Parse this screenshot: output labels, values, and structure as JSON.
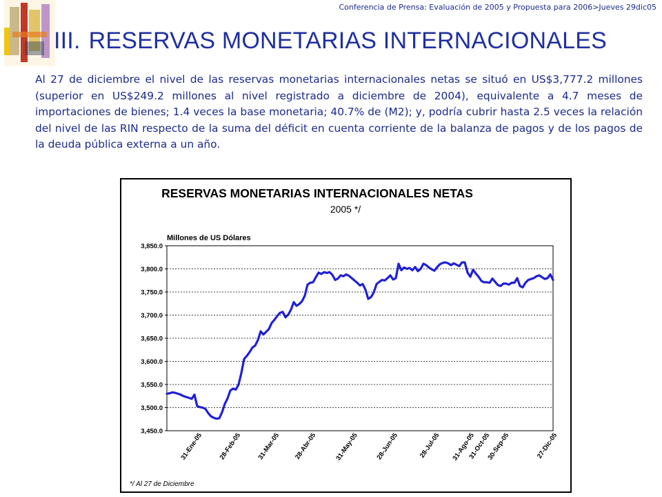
{
  "header": {
    "conference": "Conferencia de Prensa: Evaluación de 2005 y Propuesta para 2006>Jueves 29dic05"
  },
  "slide": {
    "number": "III.",
    "title": "RESERVAS MONETARIAS INTERNACIONALES",
    "body": "Al 27 de diciembre  el nivel de las reservas monetarias internacionales netas se situó en US$3,777.2 millones (superior en US$249.2 millones al nivel registrado a diciembre de 2004), equivalente a 4.7 meses de importaciones de bienes; 1.4 veces la base monetaria; 40.7% de (M2); y, podría cubrir hasta 2.5 veces la relación del nivel de las RIN respecto de la suma del déficit en cuenta corriente de la balanza de pagos y de los pagos de la deuda pública externa a un año."
  },
  "colors": {
    "title": "#1f2fa0",
    "text": "#1a2a8c",
    "series": "#1f1fd6"
  },
  "chart_data": {
    "type": "line",
    "title": "RESERVAS MONETARIAS INTERNACIONALES NETAS",
    "subtitle": "2005 */",
    "ylabel": "Millones de US Dólares",
    "footnote": "*/ Al 27 de Diciembre",
    "ylim": [
      3450,
      3850
    ],
    "yticks": [
      "3,450.0",
      "3,500.0",
      "3,550.0",
      "3,600.0",
      "3,650.0",
      "3,700.0",
      "3,750.0",
      "3,800.0",
      "3,850.0"
    ],
    "xticks": [
      "31-Ene-05",
      "28-Feb-05",
      "31-Mar-05",
      "28-Abr-05",
      "31-May-05",
      "28-Jun-05",
      "28-Jul-05",
      "31-Ago-05",
      "30-Sep-05",
      "31-Oct-05",
      "27-Dic-05"
    ],
    "grid": "horizontal dashed",
    "series": [
      {
        "name": "",
        "values": [
          3530,
          3531,
          3533,
          3532,
          3530,
          3528,
          3525,
          3523,
          3521,
          3519,
          3528,
          3503,
          3501,
          3500,
          3497,
          3488,
          3481,
          3478,
          3476,
          3477,
          3490,
          3508,
          3520,
          3537,
          3541,
          3539,
          3550,
          3575,
          3605,
          3612,
          3620,
          3630,
          3634,
          3646,
          3665,
          3658,
          3664,
          3670,
          3683,
          3690,
          3698,
          3705,
          3707,
          3695,
          3701,
          3712,
          3728,
          3720,
          3724,
          3730,
          3742,
          3766,
          3770,
          3771,
          3782,
          3792,
          3789,
          3793,
          3791,
          3793,
          3787,
          3776,
          3779,
          3786,
          3784,
          3788,
          3785,
          3780,
          3775,
          3770,
          3764,
          3767,
          3755,
          3735,
          3739,
          3749,
          3767,
          3772,
          3776,
          3775,
          3780,
          3786,
          3777,
          3780,
          3811,
          3797,
          3803,
          3800,
          3802,
          3797,
          3804,
          3795,
          3800,
          3811,
          3808,
          3803,
          3799,
          3796,
          3804,
          3810,
          3813,
          3814,
          3812,
          3808,
          3812,
          3809,
          3806,
          3814,
          3814,
          3792,
          3783,
          3798,
          3790,
          3783,
          3774,
          3771,
          3771,
          3770,
          3779,
          3772,
          3765,
          3763,
          3768,
          3768,
          3766,
          3770,
          3770,
          3780,
          3763,
          3760,
          3770,
          3776,
          3778,
          3780,
          3784,
          3786,
          3782,
          3778,
          3780,
          3788,
          3776
        ]
      }
    ]
  }
}
